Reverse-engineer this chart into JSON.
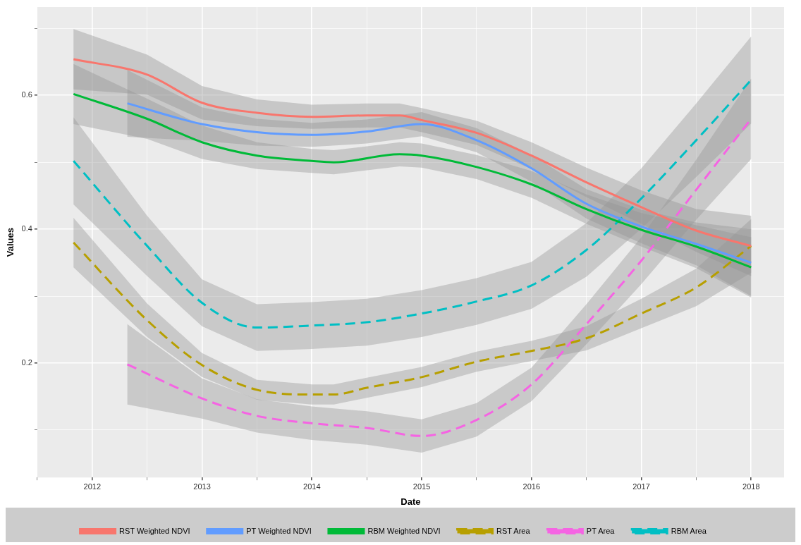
{
  "chart_data": {
    "type": "line",
    "xlabel": "Date",
    "ylabel": "Values",
    "xlim": [
      2011.5,
      2018.3
    ],
    "ylim": [
      0.029,
      0.732
    ],
    "xticks": [
      {
        "value": 2011.5,
        "label": null
      },
      2012,
      {
        "value": 2012.5,
        "label": null
      },
      2013,
      {
        "value": 2013.5,
        "label": null
      },
      2014,
      {
        "value": 2014.5,
        "label": null
      },
      2015,
      {
        "value": 2015.5,
        "label": null
      },
      2016,
      {
        "value": 2016.5,
        "label": null
      },
      2017,
      {
        "value": 2017.5,
        "label": null
      },
      2018
    ],
    "yticks": [
      {
        "value": 0.1,
        "label": null
      },
      0.2,
      {
        "value": 0.3,
        "label": null
      },
      0.4,
      {
        "value": 0.5,
        "label": null
      },
      0.6,
      {
        "value": 0.7,
        "label": null
      }
    ],
    "grid": true,
    "legend": "bottom",
    "marker": "none",
    "series": [
      {
        "name": "RST Weighted NDVI",
        "color": "#f8766d",
        "line_style": "solid",
        "x": [
          2011.83,
          2012.5,
          2013,
          2013.5,
          2014,
          2014.5,
          2014.8,
          2015,
          2015.5,
          2016,
          2016.5,
          2017,
          2017.5,
          2018
        ],
        "values": [
          0.654,
          0.631,
          0.589,
          0.574,
          0.568,
          0.57,
          0.57,
          0.563,
          0.544,
          0.51,
          0.47,
          0.433,
          0.398,
          0.375
        ],
        "lower": [
          0.609,
          0.601,
          0.564,
          0.554,
          0.55,
          0.552,
          0.552,
          0.545,
          0.526,
          0.49,
          0.448,
          0.408,
          0.366,
          0.33
        ],
        "upper": [
          0.699,
          0.661,
          0.614,
          0.594,
          0.586,
          0.588,
          0.588,
          0.581,
          0.562,
          0.53,
          0.492,
          0.458,
          0.43,
          0.42
        ]
      },
      {
        "name": "PT Weighted NDVI",
        "color": "#619cff",
        "line_style": "solid",
        "x": [
          2012.32,
          2013,
          2013.5,
          2014,
          2014.5,
          2015,
          2015.5,
          2016,
          2016.5,
          2017,
          2017.5,
          2018
        ],
        "values": [
          0.588,
          0.557,
          0.545,
          0.541,
          0.546,
          0.557,
          0.533,
          0.491,
          0.438,
          0.404,
          0.378,
          0.35
        ],
        "lower": [
          0.538,
          0.532,
          0.525,
          0.523,
          0.528,
          0.539,
          0.515,
          0.471,
          0.416,
          0.379,
          0.346,
          0.3
        ],
        "upper": [
          0.638,
          0.582,
          0.565,
          0.559,
          0.564,
          0.575,
          0.551,
          0.511,
          0.46,
          0.429,
          0.41,
          0.4
        ]
      },
      {
        "name": "RBM Weighted NDVI",
        "color": "#00ba38",
        "line_style": "solid",
        "x": [
          2011.83,
          2012.5,
          2013,
          2013.5,
          2014,
          2014.2,
          2014.8,
          2015,
          2015.5,
          2016,
          2016.5,
          2017,
          2017.5,
          2018
        ],
        "values": [
          0.602,
          0.565,
          0.53,
          0.51,
          0.502,
          0.5,
          0.512,
          0.51,
          0.493,
          0.467,
          0.43,
          0.399,
          0.374,
          0.343
        ],
        "lower": [
          0.557,
          0.535,
          0.505,
          0.49,
          0.484,
          0.482,
          0.494,
          0.492,
          0.475,
          0.447,
          0.408,
          0.374,
          0.342,
          0.298
        ],
        "upper": [
          0.647,
          0.595,
          0.555,
          0.53,
          0.52,
          0.518,
          0.53,
          0.528,
          0.511,
          0.487,
          0.452,
          0.424,
          0.406,
          0.388
        ]
      },
      {
        "name": "RST Area",
        "color": "#b79f00",
        "line_style": "dashed",
        "x": [
          2011.83,
          2012.5,
          2013,
          2013.5,
          2014,
          2014.2,
          2014.5,
          2015,
          2015.5,
          2016,
          2016.5,
          2017,
          2017.5,
          2018
        ],
        "values": [
          0.38,
          0.264,
          0.197,
          0.16,
          0.153,
          0.153,
          0.163,
          0.179,
          0.202,
          0.218,
          0.237,
          0.274,
          0.313,
          0.375
        ],
        "lower": [
          0.343,
          0.239,
          0.179,
          0.145,
          0.138,
          0.138,
          0.148,
          0.164,
          0.187,
          0.203,
          0.219,
          0.252,
          0.285,
          0.335
        ],
        "upper": [
          0.417,
          0.289,
          0.215,
          0.175,
          0.168,
          0.168,
          0.178,
          0.194,
          0.217,
          0.233,
          0.255,
          0.296,
          0.341,
          0.415
        ]
      },
      {
        "name": "PT Area",
        "color": "#f564e3",
        "line_style": "dashed",
        "x": [
          2012.32,
          2013,
          2013.5,
          2014,
          2014.5,
          2015,
          2015.5,
          2016,
          2016.5,
          2017,
          2017.5,
          2018
        ],
        "values": [
          0.198,
          0.147,
          0.121,
          0.11,
          0.103,
          0.091,
          0.115,
          0.168,
          0.258,
          0.353,
          0.459,
          0.565
        ],
        "lower": [
          0.138,
          0.117,
          0.096,
          0.085,
          0.078,
          0.066,
          0.09,
          0.143,
          0.228,
          0.318,
          0.414,
          0.505
        ],
        "upper": [
          0.258,
          0.177,
          0.146,
          0.135,
          0.128,
          0.116,
          0.14,
          0.193,
          0.288,
          0.388,
          0.504,
          0.625
        ]
      },
      {
        "name": "RBM Area",
        "color": "#00bfc4",
        "line_style": "dashed",
        "x": [
          2011.83,
          2012.5,
          2013,
          2013.5,
          2014,
          2014.5,
          2015,
          2015.5,
          2016,
          2016.5,
          2017,
          2017.5,
          2018
        ],
        "values": [
          0.502,
          0.375,
          0.29,
          0.253,
          0.256,
          0.261,
          0.274,
          0.292,
          0.316,
          0.369,
          0.446,
          0.533,
          0.623
        ],
        "lower": [
          0.437,
          0.33,
          0.255,
          0.218,
          0.221,
          0.226,
          0.239,
          0.257,
          0.281,
          0.329,
          0.401,
          0.478,
          0.558
        ],
        "upper": [
          0.567,
          0.42,
          0.325,
          0.288,
          0.291,
          0.296,
          0.309,
          0.327,
          0.351,
          0.409,
          0.491,
          0.588,
          0.688
        ]
      }
    ]
  }
}
